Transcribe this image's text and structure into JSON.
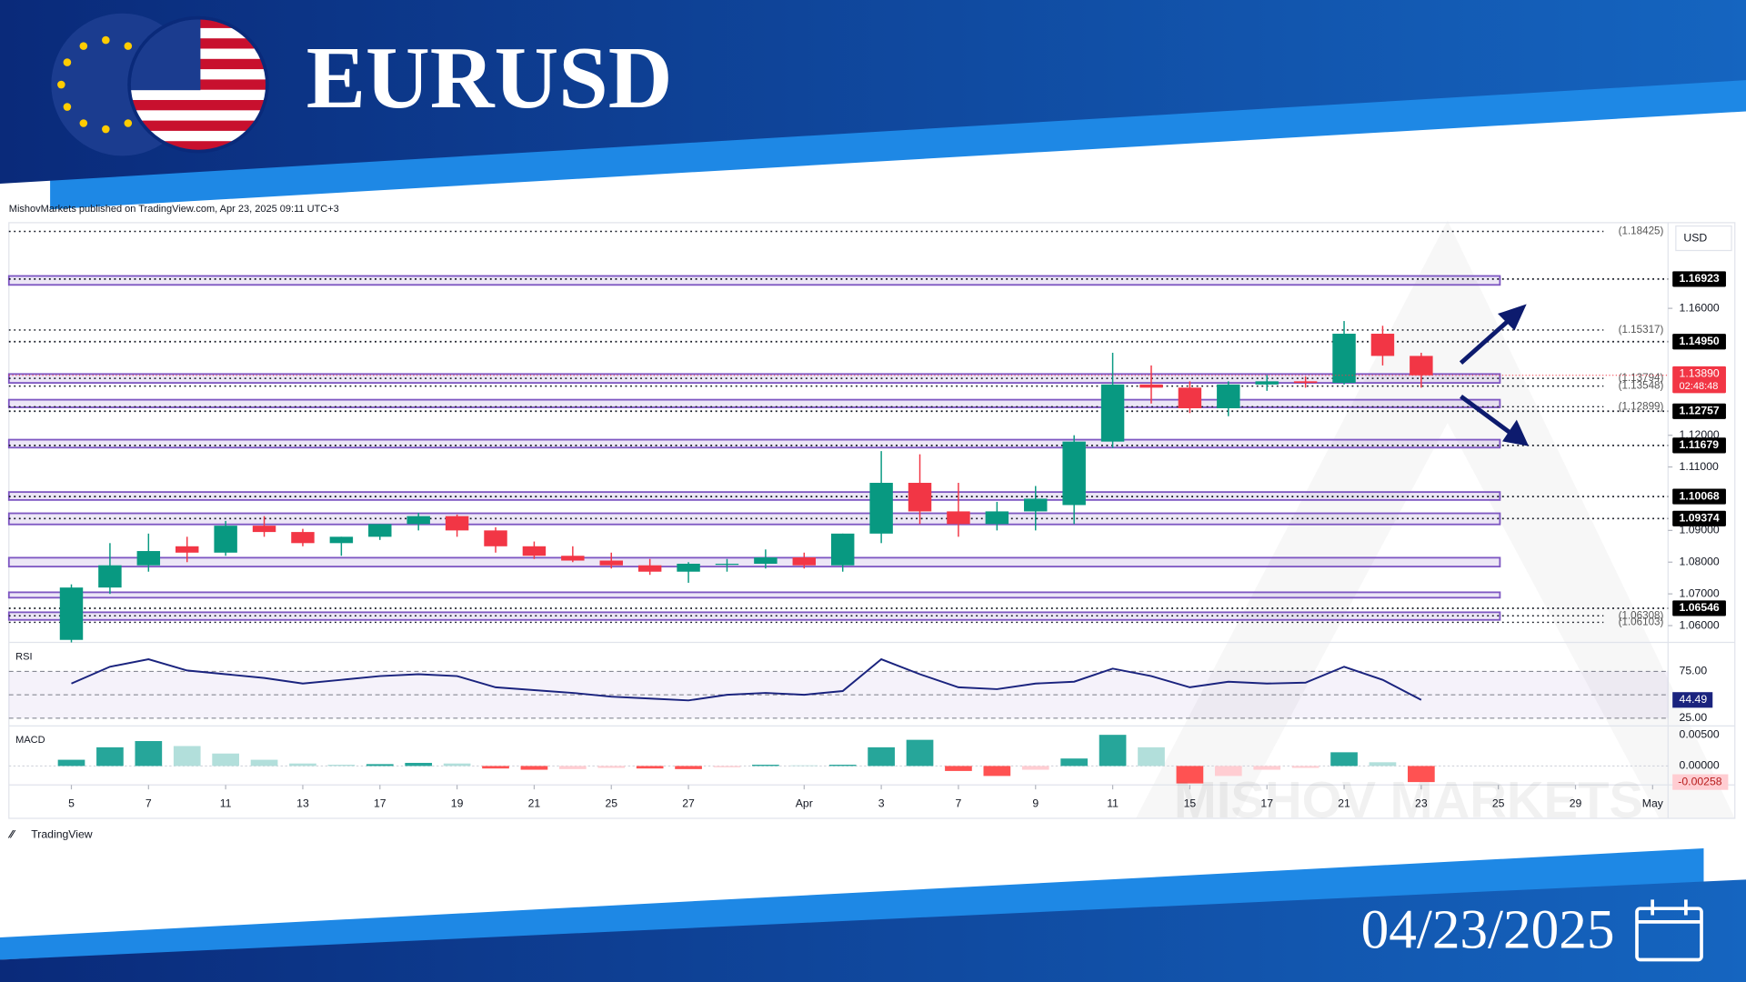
{
  "header": {
    "title": "EURUSD",
    "date": "04/23/2025"
  },
  "publisher": "MishovMarkets published on TradingView.com, Apr 23, 2025 09:11 UTC+3",
  "branding": "TradingView",
  "watermark": "MISHOV MARKETS",
  "chart_data": [
    {
      "type": "candlestick",
      "currency": "USD",
      "x": [
        0,
        1,
        2,
        3,
        4,
        5,
        6,
        7,
        8,
        9,
        10,
        11,
        12,
        13,
        14,
        15,
        16,
        17,
        18,
        19,
        20,
        21,
        22,
        23,
        24,
        25,
        26,
        27,
        28,
        29,
        30,
        31,
        32,
        33,
        34,
        35
      ],
      "open": [
        1.0555,
        1.072,
        1.079,
        1.085,
        1.083,
        1.0915,
        1.0895,
        1.086,
        1.088,
        1.092,
        1.0945,
        1.09,
        1.085,
        1.082,
        1.0805,
        1.079,
        1.077,
        1.0795,
        1.0795,
        1.0815,
        1.079,
        1.089,
        1.105,
        1.096,
        1.092,
        1.096,
        1.098,
        1.118,
        1.136,
        1.135,
        1.1285,
        1.136,
        1.137,
        1.1365,
        1.152,
        1.145
      ],
      "high": [
        1.073,
        1.086,
        1.089,
        1.088,
        1.093,
        1.0945,
        1.0905,
        1.088,
        1.092,
        1.0955,
        1.095,
        1.091,
        1.0865,
        1.085,
        1.083,
        1.081,
        1.08,
        1.081,
        1.084,
        1.083,
        1.089,
        1.115,
        1.114,
        1.105,
        1.099,
        1.104,
        1.12,
        1.146,
        1.142,
        1.137,
        1.137,
        1.139,
        1.1385,
        1.156,
        1.1545,
        1.146
      ],
      "low": [
        1.0547,
        1.07,
        1.077,
        1.08,
        1.082,
        1.088,
        1.085,
        1.082,
        1.087,
        1.09,
        1.088,
        1.083,
        1.081,
        1.08,
        1.078,
        1.076,
        1.0735,
        1.077,
        1.078,
        1.078,
        1.077,
        1.086,
        1.092,
        1.088,
        1.09,
        1.09,
        1.092,
        1.116,
        1.13,
        1.127,
        1.126,
        1.134,
        1.135,
        1.136,
        1.142,
        1.135
      ],
      "close": [
        1.072,
        1.079,
        1.0835,
        1.083,
        1.0915,
        1.0895,
        1.086,
        1.088,
        1.092,
        1.0945,
        1.09,
        1.085,
        1.082,
        1.0805,
        1.079,
        1.077,
        1.0795,
        1.0795,
        1.0815,
        1.079,
        1.089,
        1.105,
        1.096,
        1.092,
        1.096,
        1.1,
        1.118,
        1.136,
        1.135,
        1.1285,
        1.136,
        1.137,
        1.1365,
        1.152,
        1.145,
        1.1389
      ],
      "xlim": [
        -1.62,
        41.4
      ],
      "xticks": [
        {
          "value": 0,
          "label": "5"
        },
        {
          "value": 2,
          "label": "7"
        },
        {
          "value": 4,
          "label": "11"
        },
        {
          "value": 6,
          "label": "13"
        },
        {
          "value": 8,
          "label": "17"
        },
        {
          "value": 10,
          "label": "19"
        },
        {
          "value": 12,
          "label": "21"
        },
        {
          "value": 14,
          "label": "25"
        },
        {
          "value": 16,
          "label": "27"
        },
        {
          "value": 19,
          "label": "Apr"
        },
        {
          "value": 21,
          "label": "3"
        },
        {
          "value": 23,
          "label": "7"
        },
        {
          "value": 25,
          "label": "9"
        },
        {
          "value": 27,
          "label": "11"
        },
        {
          "value": 29,
          "label": "15"
        },
        {
          "value": 31,
          "label": "17"
        },
        {
          "value": 33,
          "label": "21"
        },
        {
          "value": 35,
          "label": "23"
        },
        {
          "value": 37,
          "label": "25"
        },
        {
          "value": 39,
          "label": "29"
        },
        {
          "value": 41,
          "label": "May"
        }
      ],
      "ylim": [
        1.0547,
        1.187
      ],
      "yticks": [
        {
          "value": 1.06,
          "label": "1.06000"
        },
        {
          "value": 1.07,
          "label": "1.07000"
        },
        {
          "value": 1.08,
          "label": "1.08000"
        },
        {
          "value": 1.09,
          "label": "1.09000"
        },
        {
          "value": 1.11,
          "label": "1.11000"
        },
        {
          "value": 1.12,
          "label": "1.12000"
        },
        {
          "value": 1.16,
          "label": "1.16000"
        }
      ],
      "levels": [
        {
          "value": 1.16923,
          "label": "1.16923"
        },
        {
          "value": 1.1495,
          "label": "1.14950"
        },
        {
          "value": 1.12757,
          "label": "1.12757"
        },
        {
          "value": 1.11679,
          "label": "1.11679"
        },
        {
          "value": 1.10068,
          "label": "1.10068"
        },
        {
          "value": 1.09374,
          "label": "1.09374"
        },
        {
          "value": 1.06546,
          "label": "1.06546"
        }
      ],
      "marked_prices": [
        {
          "value": 1.18425,
          "label": "(1.18425)"
        },
        {
          "value": 1.15317,
          "label": "(1.15317)"
        },
        {
          "value": 1.13794,
          "label": "(1.13794)"
        },
        {
          "value": 1.13548,
          "label": "(1.13548)"
        },
        {
          "value": 1.12899,
          "label": "(1.12899)"
        },
        {
          "value": 1.06308,
          "label": "(1.06308)"
        },
        {
          "value": 1.06103,
          "label": "(1.06103)"
        }
      ],
      "last_price": {
        "value": 1.1389,
        "label": "1.13890"
      },
      "countdown": "02:48:48",
      "zones": [
        [
          1.1674,
          1.1702
        ],
        [
          1.1365,
          1.1393
        ],
        [
          1.1288,
          1.1312
        ],
        [
          1.1161,
          1.1186
        ],
        [
          1.0996,
          1.1021
        ],
        [
          1.0919,
          1.0954
        ],
        [
          1.0786,
          1.0814
        ],
        [
          1.0688,
          1.0705
        ],
        [
          1.0618,
          1.0642
        ]
      ],
      "up_color": "#089981",
      "down_color": "#f23645",
      "zone_color": "#7e57c2"
    },
    {
      "type": "line",
      "title": "RSI",
      "x": [
        0,
        1,
        2,
        3,
        4,
        5,
        6,
        7,
        8,
        9,
        10,
        11,
        12,
        13,
        14,
        15,
        16,
        17,
        18,
        19,
        20,
        21,
        22,
        23,
        24,
        25,
        26,
        27,
        28,
        29,
        30,
        31,
        32,
        33,
        34,
        35
      ],
      "values": [
        62,
        80,
        88,
        76,
        72,
        68,
        62,
        66,
        70,
        72,
        70,
        58,
        55,
        52,
        48,
        46,
        44,
        50,
        52,
        50,
        54,
        88,
        72,
        58,
        56,
        62,
        64,
        78,
        70,
        58,
        64,
        62,
        63,
        80,
        66,
        44.49
      ],
      "ylim": [
        16.7,
        106
      ],
      "yticks": [
        {
          "value": 75,
          "label": "75.00"
        },
        {
          "value": 25,
          "label": "25.00"
        }
      ],
      "band": [
        25,
        75
      ],
      "midline": 50,
      "color": "#1a237e"
    },
    {
      "type": "bar",
      "title": "MACD",
      "x": [
        0,
        1,
        2,
        3,
        4,
        5,
        6,
        7,
        8,
        9,
        10,
        11,
        12,
        13,
        14,
        15,
        16,
        17,
        18,
        19,
        20,
        21,
        22,
        23,
        24,
        25,
        26,
        27,
        28,
        29,
        30,
        31,
        32,
        33,
        34,
        35
      ],
      "values": [
        0.001,
        0.003,
        0.004,
        0.0032,
        0.002,
        0.001,
        0.0004,
        0.0002,
        0.0003,
        0.0005,
        0.0004,
        -0.0004,
        -0.0006,
        -0.0005,
        -0.0003,
        -0.0004,
        -0.0005,
        -0.0002,
        0.0002,
        0.0001,
        0.0002,
        0.003,
        0.0042,
        -0.0008,
        -0.0016,
        -0.0006,
        0.0012,
        0.005,
        0.003,
        -0.0028,
        -0.0016,
        -0.0006,
        -0.0003,
        0.0022,
        0.0006,
        -0.00258
      ],
      "ylim": [
        -0.00304,
        0.00643
      ],
      "yticks": [
        {
          "value": 0.005,
          "label": "0.00500"
        },
        {
          "value": 0,
          "label": "0.00000"
        }
      ],
      "up_color": "#26a69a",
      "down_color": "#ff5252"
    }
  ]
}
